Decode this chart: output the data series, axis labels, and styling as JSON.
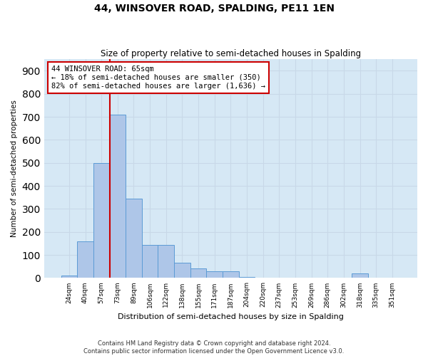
{
  "title": "44, WINSOVER ROAD, SPALDING, PE11 1EN",
  "subtitle": "Size of property relative to semi-detached houses in Spalding",
  "xlabel": "Distribution of semi-detached houses by size in Spalding",
  "ylabel": "Number of semi-detached properties",
  "footer_line1": "Contains HM Land Registry data © Crown copyright and database right 2024.",
  "footer_line2": "Contains public sector information licensed under the Open Government Licence v3.0.",
  "categories": [
    "24sqm",
    "40sqm",
    "57sqm",
    "73sqm",
    "89sqm",
    "106sqm",
    "122sqm",
    "138sqm",
    "155sqm",
    "171sqm",
    "187sqm",
    "204sqm",
    "220sqm",
    "237sqm",
    "253sqm",
    "269sqm",
    "286sqm",
    "302sqm",
    "318sqm",
    "335sqm",
    "351sqm"
  ],
  "values": [
    10,
    160,
    500,
    710,
    345,
    145,
    145,
    65,
    40,
    30,
    30,
    5,
    0,
    0,
    0,
    0,
    0,
    0,
    20,
    0,
    0
  ],
  "bar_color": "#aec6e8",
  "bar_edge_color": "#5b9bd5",
  "grid_color": "#c8d8e8",
  "bg_color": "#d6e8f5",
  "property_sqm": 65,
  "pct_smaller": 18,
  "count_smaller": 350,
  "pct_larger": 82,
  "count_larger": "1,636",
  "annotation_text_line1": "44 WINSOVER ROAD: 65sqm",
  "annotation_text_line2": "← 18% of semi-detached houses are smaller (350)",
  "annotation_text_line3": "82% of semi-detached houses are larger (1,636) →",
  "annotation_box_color": "#ffffff",
  "annotation_box_edge": "#cc0000",
  "property_line_color": "#cc0000",
  "ylim": [
    0,
    950
  ],
  "yticks": [
    0,
    100,
    200,
    300,
    400,
    500,
    600,
    700,
    800,
    900
  ]
}
